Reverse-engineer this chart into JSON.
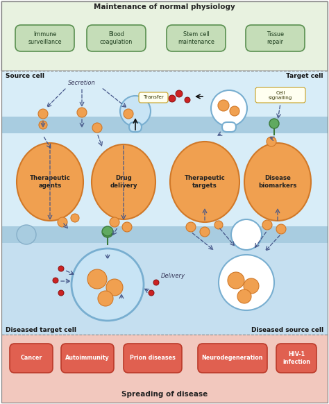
{
  "fig_width": 4.74,
  "fig_height": 5.82,
  "dpi": 100,
  "top_title": "Maintenance of normal physiology",
  "bottom_title": "Spreading of disease",
  "bg_white": "#ffffff",
  "top_bg": "#e8f2e0",
  "mid_bg": "#d8edf8",
  "mid_bg2": "#c5dff0",
  "bot_bg": "#f2c8be",
  "membrane_color": "#a8cce0",
  "membrane_dark": "#85aec8",
  "orange_fill": "#f0a050",
  "orange_edge": "#d07828",
  "green_box_fill": "#c5ddb8",
  "green_box_edge": "#5a9050",
  "red_box_fill": "#e06050",
  "red_box_edge": "#bb3a2a",
  "yellow_box_fill": "#fffff0",
  "yellow_box_edge": "#c8a020",
  "blue_cell_fill": "#c8e4f5",
  "blue_cell_edge": "#78aed0",
  "white_cell_fill": "#ffffff",
  "white_cell_edge": "#aaccdd",
  "arrow_color": "#445588",
  "green_receptor": "#60aa60",
  "green_receptor_dark": "#3a7a3a",
  "red_dot": "#cc2222",
  "top_boxes": [
    "Immune\nsurveillance",
    "Blood\ncoagulation",
    "Stem cell\nmaintenance",
    "Tissue\nrepair"
  ],
  "bottom_boxes": [
    "Cancer",
    "Autoimmunity",
    "Prion diseases",
    "Neurodegeneration",
    "HIV-1\ninfection"
  ],
  "source_label": "Source cell",
  "target_label": "Target cell",
  "dis_target_label": "Diseased target cell",
  "dis_source_label": "Diseased source cell",
  "secretion_label": "Secretion",
  "transfer_label": "Transfer",
  "delivery_label": "Delivery",
  "cell_sig_label": "Cell\nsignalling",
  "main_labels": [
    "Therapeutic\nagents",
    "Drug\ndelivery",
    "Therapeutic\ntargets",
    "Disease\nbiomarkers"
  ]
}
